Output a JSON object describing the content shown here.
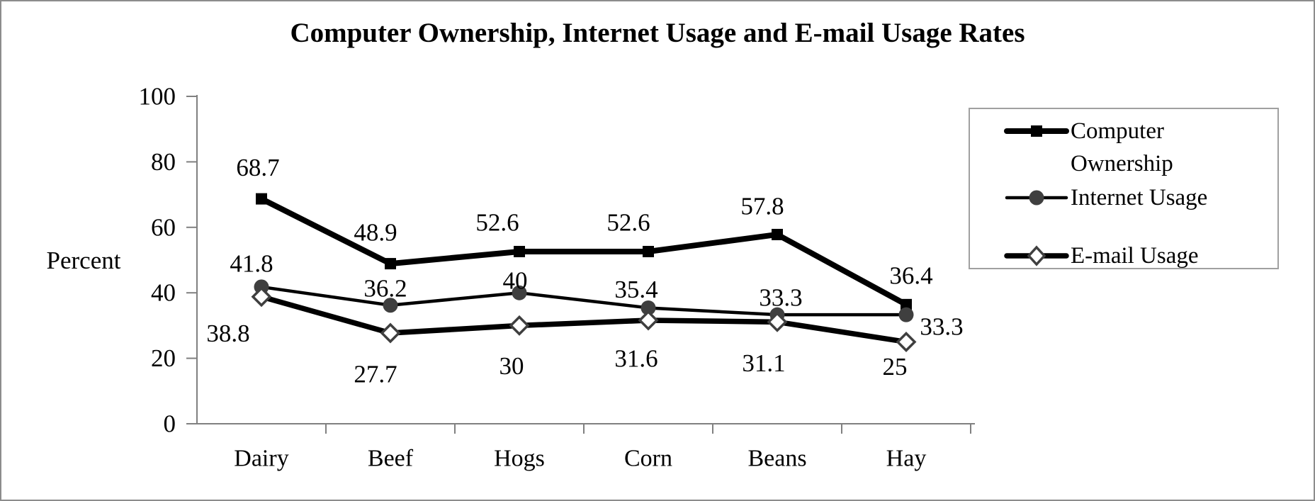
{
  "window": {
    "background": "#ffffff",
    "frame_border_color": "#8c8c8c"
  },
  "colors": {
    "line_black": "#000000",
    "marker_gray": "#3f3f3f",
    "axis_gray": "#808080",
    "legend_border": "#a0a0a0",
    "text": "#000000"
  },
  "chart_data": {
    "type": "line",
    "title": "Computer Ownership, Internet Usage and E-mail Usage Rates",
    "xlabel": "",
    "ylabel": "Percent",
    "categories": [
      "Dairy",
      "Beef",
      "Hogs",
      "Corn",
      "Beans",
      "Hay"
    ],
    "ylim": [
      0,
      100
    ],
    "y_ticks": [
      0,
      20,
      40,
      60,
      80,
      100
    ],
    "grid": false,
    "legend_position": "right",
    "series": [
      {
        "name": "Computer Ownership",
        "marker": "square",
        "line_color": "#000000",
        "marker_color": "#000000",
        "line_width": 8,
        "values": [
          68.7,
          48.9,
          52.6,
          52.6,
          57.8,
          36.4
        ],
        "labels": [
          "68.7",
          "48.9",
          "52.6",
          "52.6",
          "57.8",
          "36.4"
        ]
      },
      {
        "name": "Internet Usage",
        "marker": "circle",
        "line_color": "#000000",
        "marker_color": "#3f3f3f",
        "line_width": 4.5,
        "values": [
          41.8,
          36.2,
          40,
          35.4,
          33.3,
          33.3
        ],
        "labels": [
          "41.8",
          "36.2",
          "40",
          "35.4",
          "33.3",
          "33.3"
        ]
      },
      {
        "name": "E-mail Usage",
        "marker": "diamond-open",
        "line_color": "#000000",
        "marker_color": "#3f3f3f",
        "line_width": 7.5,
        "values": [
          38.8,
          27.7,
          30,
          31.6,
          31.1,
          25
        ],
        "labels": [
          "38.8",
          "27.7",
          "30",
          "31.6",
          "31.1",
          "25"
        ]
      }
    ],
    "layout_hints": {
      "data_label_offsets": [
        [
          [
            -5,
            -44
          ],
          [
            -21,
            -44
          ],
          [
            -31,
            -41
          ],
          [
            -28,
            -41
          ],
          [
            -21,
            -40
          ],
          [
            7,
            -41
          ]
        ],
        [
          [
            -14,
            -33
          ],
          [
            -7,
            -24
          ],
          [
            -6,
            -17
          ],
          [
            -17,
            -26
          ],
          [
            5,
            -24
          ],
          [
            50,
            17
          ]
        ],
        [
          [
            -47,
            52
          ],
          [
            -21,
            58
          ],
          [
            -11,
            57
          ],
          [
            -17,
            54
          ],
          [
            -19,
            58
          ],
          [
            -16,
            35
          ]
        ]
      ]
    }
  }
}
